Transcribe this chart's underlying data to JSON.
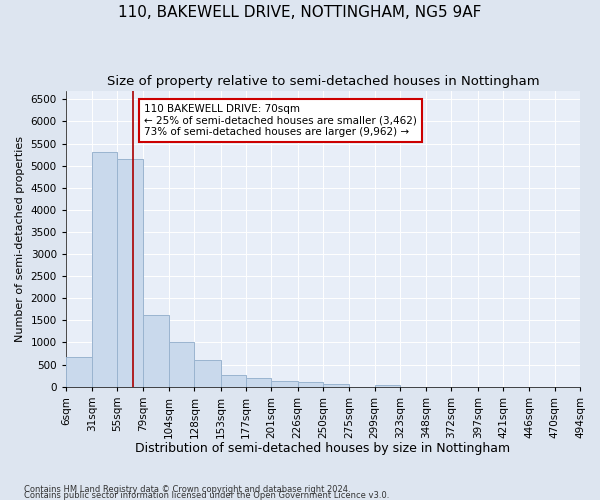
{
  "title": "110, BAKEWELL DRIVE, NOTTINGHAM, NG5 9AF",
  "subtitle": "Size of property relative to semi-detached houses in Nottingham",
  "xlabel": "Distribution of semi-detached houses by size in Nottingham",
  "ylabel": "Number of semi-detached properties",
  "footer1": "Contains HM Land Registry data © Crown copyright and database right 2024.",
  "footer2": "Contains public sector information licensed under the Open Government Licence v3.0.",
  "bin_edges": [
    6,
    31,
    55,
    79,
    104,
    128,
    153,
    177,
    201,
    226,
    250,
    275,
    299,
    323,
    348,
    372,
    397,
    421,
    446,
    470,
    494
  ],
  "bar_heights": [
    680,
    5300,
    5150,
    1620,
    1000,
    600,
    270,
    200,
    120,
    100,
    50,
    0,
    40,
    0,
    0,
    0,
    0,
    0,
    0,
    0
  ],
  "bar_color": "#c9d9ec",
  "bar_edge_color": "#9ab4cf",
  "property_size": 70,
  "vline_color": "#aa0000",
  "annotation_text": "110 BAKEWELL DRIVE: 70sqm\n← 25% of semi-detached houses are smaller (3,462)\n73% of semi-detached houses are larger (9,962) →",
  "annotation_box_color": "#ffffff",
  "annotation_box_edge": "#cc0000",
  "ylim": [
    0,
    6700
  ],
  "yticks": [
    0,
    500,
    1000,
    1500,
    2000,
    2500,
    3000,
    3500,
    4000,
    4500,
    5000,
    5500,
    6000,
    6500
  ],
  "background_color": "#dde5f0",
  "plot_background": "#e8eef8",
  "grid_color": "#ffffff",
  "title_fontsize": 11,
  "subtitle_fontsize": 9.5,
  "tick_fontsize": 7.5,
  "ylabel_fontsize": 8,
  "xlabel_fontsize": 9,
  "annotation_fontsize": 7.5,
  "footer_fontsize": 6
}
